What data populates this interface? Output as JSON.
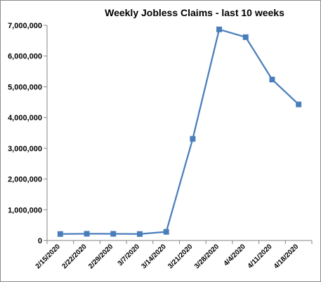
{
  "chart_data": {
    "type": "line",
    "title": "Weekly Jobless Claims - last 10 weeks",
    "xlabel": "",
    "ylabel": "",
    "categories": [
      "2/15/2020",
      "2/22/2020",
      "2/29/2020",
      "3/7/2020",
      "3/14/2020",
      "3/21/2020",
      "3/28/2020",
      "4/4/2020",
      "4/11/2020",
      "4/18/2020"
    ],
    "series": [
      {
        "values": [
          211000,
          219000,
          217000,
          211000,
          282000,
          3307000,
          6867000,
          6615000,
          5237000,
          4427000
        ],
        "color": "#4a7ebb",
        "marker": "square"
      }
    ],
    "ylim": [
      0,
      7000000
    ],
    "yticks": [
      0,
      1000000,
      2000000,
      3000000,
      4000000,
      5000000,
      6000000,
      7000000
    ],
    "ytick_labels": [
      "0",
      "1,000,000",
      "2,000,000",
      "3,000,000",
      "4,000,000",
      "5,000,000",
      "6,000,000",
      "7,000,000"
    ],
    "grid": false,
    "legend": "none"
  }
}
